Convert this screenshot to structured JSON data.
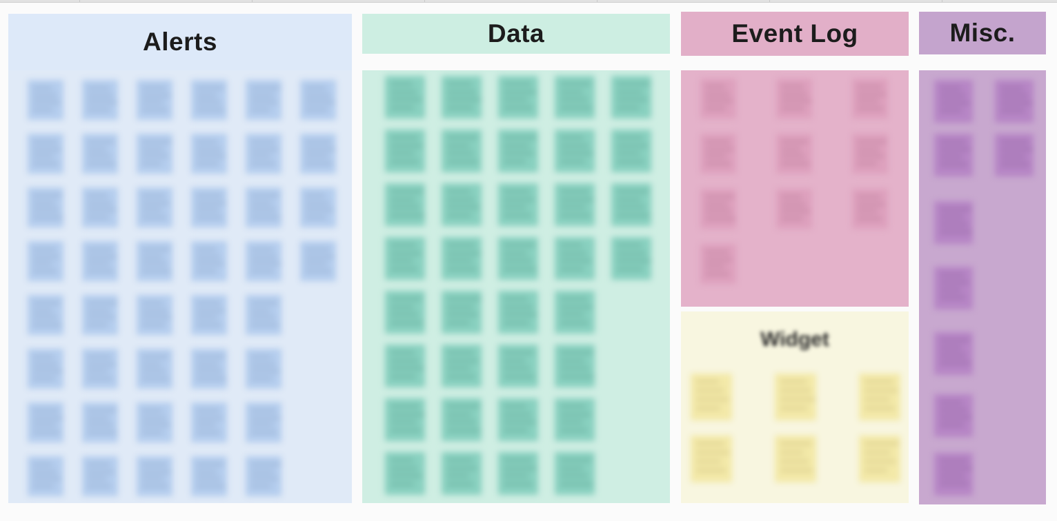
{
  "board": {
    "groups": [
      {
        "key": "alerts",
        "title": "Alerts",
        "header_color": "#dde9f9",
        "body_color": "#e0eaf7",
        "note_color": "#b4cdee",
        "line_color": "#7f97b8",
        "note_rows": [
          6,
          6,
          6,
          6,
          5,
          5,
          5,
          5
        ]
      },
      {
        "key": "data",
        "title": "Data",
        "header_color": "#cdeee2",
        "body_color": "#cfeee3",
        "note_color": "#88d0bf",
        "line_color": "#4d8f80",
        "note_rows": [
          5,
          5,
          5,
          5,
          4,
          4,
          4,
          4
        ]
      },
      {
        "key": "event_log",
        "title": "Event Log",
        "header_color": "#e2afc8",
        "body_color": "#e4b2ca",
        "note_color": "#dda0bd",
        "line_color": "#a66a86",
        "note_rows": [
          3,
          3,
          3,
          1
        ]
      },
      {
        "key": "misc",
        "title": "Misc.",
        "header_color": "#c4a4cd",
        "body_color": "#c8a8cf",
        "note_color": "#b685c5",
        "line_color": "#80558f",
        "note_rows": [
          2,
          2,
          1,
          1,
          1,
          1,
          1
        ]
      }
    ],
    "widget": {
      "key": "widget",
      "title": "Widget",
      "body_color": "#f8f6e0",
      "note_color": "#f3e9a8",
      "line_color": "#b8a86a",
      "note_rows": [
        3,
        3
      ]
    }
  }
}
